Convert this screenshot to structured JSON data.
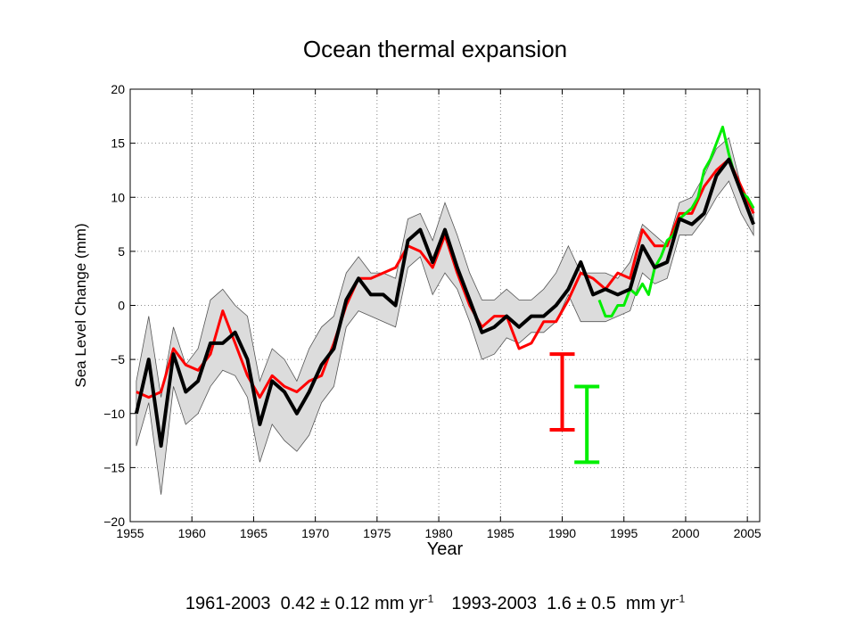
{
  "chart_data": {
    "type": "line",
    "title": "Ocean thermal expansion",
    "xlabel": "Year",
    "ylabel": "Sea Level Change (mm)",
    "xlim": [
      1955,
      2006
    ],
    "ylim": [
      -20,
      20
    ],
    "xticks": [
      1955,
      1960,
      1965,
      1970,
      1975,
      1980,
      1985,
      1990,
      1995,
      2000,
      2005
    ],
    "yticks": [
      -20,
      -15,
      -10,
      -5,
      0,
      5,
      10,
      15,
      20
    ],
    "grid": true,
    "band": {
      "x": [
        1955.5,
        1956.5,
        1957.5,
        1958.5,
        1959.5,
        1960.5,
        1961.5,
        1962.5,
        1963.5,
        1964.5,
        1965.5,
        1966.5,
        1967.5,
        1968.5,
        1969.5,
        1970.5,
        1971.5,
        1972.5,
        1973.5,
        1974.5,
        1975.5,
        1976.5,
        1977.5,
        1978.5,
        1979.5,
        1980.5,
        1981.5,
        1982.5,
        1983.5,
        1984.5,
        1985.5,
        1986.5,
        1987.5,
        1988.5,
        1989.5,
        1990.5,
        1991.5,
        1992.5,
        1993.5,
        1994.5,
        1995.5,
        1996.5,
        1997.5,
        1998.5,
        1999.5,
        2000.5,
        2001.5,
        2002.5,
        2003.5,
        2004.5,
        2005.5
      ],
      "upper": [
        -7,
        -1,
        -8.5,
        -2,
        -5.5,
        -4,
        0.5,
        1.5,
        0,
        -1,
        -7,
        -4,
        -5,
        -7,
        -4,
        -2,
        -1,
        3,
        4.5,
        3,
        3,
        2.5,
        8,
        8.5,
        6,
        9.5,
        6.5,
        3,
        0.5,
        0.5,
        1.5,
        0.5,
        0.5,
        1.5,
        3,
        5.5,
        3,
        3,
        3,
        2.5,
        4,
        7.5,
        6.5,
        5.5,
        9.5,
        10,
        12,
        14.5,
        15.5,
        11,
        9
      ],
      "lower": [
        -13,
        -9,
        -17.5,
        -7.5,
        -11,
        -10,
        -7.5,
        -6,
        -6.5,
        -8.5,
        -14.5,
        -11,
        -12.5,
        -13.5,
        -12,
        -9,
        -7.5,
        -2,
        -0.5,
        -1,
        -1.5,
        -2,
        3.5,
        4.5,
        1,
        3,
        1.5,
        -1.5,
        -5,
        -4.5,
        -3,
        -3.5,
        -2.5,
        -2.5,
        -1.5,
        1,
        -1.5,
        -1.5,
        -1.5,
        -1,
        -0.5,
        3,
        2,
        2.5,
        6.5,
        6.5,
        8,
        10,
        11.5,
        8.5,
        6.5
      ]
    },
    "series": [
      {
        "color": "#000000",
        "x": [
          1955.5,
          1956.5,
          1957.5,
          1958.5,
          1959.5,
          1960.5,
          1961.5,
          1962.5,
          1963.5,
          1964.5,
          1965.5,
          1966.5,
          1967.5,
          1968.5,
          1969.5,
          1970.5,
          1971.5,
          1972.5,
          1973.5,
          1974.5,
          1975.5,
          1976.5,
          1977.5,
          1978.5,
          1979.5,
          1980.5,
          1981.5,
          1982.5,
          1983.5,
          1984.5,
          1985.5,
          1986.5,
          1987.5,
          1988.5,
          1989.5,
          1990.5,
          1991.5,
          1992.5,
          1993.5,
          1994.5,
          1995.5,
          1996.5,
          1997.5,
          1998.5,
          1999.5,
          2000.5,
          2001.5,
          2002.5,
          2003.5,
          2004.5,
          2005.5
        ],
        "y": [
          -10,
          -5,
          -13,
          -4.5,
          -8,
          -7,
          -3.5,
          -3.5,
          -2.5,
          -5,
          -11,
          -7,
          -8,
          -10,
          -8,
          -5.5,
          -4,
          0.5,
          2.5,
          1,
          1,
          0,
          6,
          7,
          4,
          7,
          3.5,
          0.5,
          -2.5,
          -2,
          -1,
          -2,
          -1,
          -1,
          0,
          1.5,
          4,
          1,
          1.5,
          1,
          1.5,
          5.5,
          3.5,
          4,
          8,
          7.5,
          8.5,
          12,
          13.5,
          10.5,
          7.5
        ]
      },
      {
        "color": "#ff0000",
        "x": [
          1955.5,
          1956.5,
          1957.5,
          1958.5,
          1959.5,
          1960.5,
          1961.5,
          1962.5,
          1963.5,
          1964.5,
          1965.5,
          1966.5,
          1967.5,
          1968.5,
          1969.5,
          1970.5,
          1971.5,
          1972.5,
          1973.5,
          1974.5,
          1975.5,
          1976.5,
          1977.5,
          1978.5,
          1979.5,
          1980.5,
          1981.5,
          1982.5,
          1983.5,
          1984.5,
          1985.5,
          1986.5,
          1987.5,
          1988.5,
          1989.5,
          1990.5,
          1991.5,
          1992.5,
          1993.5,
          1994.5,
          1995.5,
          1996.5,
          1997.5,
          1998.5,
          1999.5,
          2000.5,
          2001.5,
          2002.5,
          2003.5,
          2004.5,
          2005.5
        ],
        "y": [
          -8,
          -8.5,
          -8,
          -4,
          -5.5,
          -6,
          -4.5,
          -0.5,
          -3.5,
          -6.5,
          -8.5,
          -6.5,
          -7.5,
          -8,
          -7,
          -6.5,
          -3.5,
          0,
          2.5,
          2.5,
          3,
          3.5,
          5.5,
          5,
          3.5,
          6.5,
          3,
          0,
          -2,
          -1,
          -1,
          -4,
          -3.5,
          -1.5,
          -1.5,
          0.5,
          3,
          2.5,
          1.5,
          3,
          2.5,
          7,
          5.5,
          5.5,
          8.5,
          8.5,
          11,
          12.5,
          13.5,
          11,
          8.5
        ]
      },
      {
        "color": "#00ee00",
        "x": [
          1993.0,
          1993.5,
          1994.0,
          1994.5,
          1995.0,
          1995.5,
          1996.0,
          1996.5,
          1997.0,
          1997.5,
          1998.0,
          1998.5,
          1999.0,
          1999.5,
          2000.0,
          2000.5,
          2001.0,
          2001.5,
          2002.0,
          2002.5,
          2003.0,
          2003.5,
          2004.0,
          2004.5,
          2005.0,
          2005.5
        ],
        "y": [
          0.5,
          -1,
          -1,
          0,
          0,
          1.5,
          1,
          2,
          1,
          3.5,
          4.5,
          6,
          6.5,
          8,
          8.5,
          9,
          10,
          12.5,
          13.5,
          15,
          16.5,
          14,
          12,
          10.5,
          10,
          9
        ]
      }
    ],
    "error_bars": [
      {
        "color": "#ff0000",
        "x": 1990,
        "low": -11.5,
        "high": -4.5
      },
      {
        "color": "#00ee00",
        "x": 1992,
        "low": -14.5,
        "high": -7.5
      }
    ]
  },
  "caption": {
    "red_period": "1961-2003",
    "red_rate": "0.42 ± 0.12 mm yr",
    "green_period": "1993-2003",
    "green_rate": "1.6 ± 0.5  mm yr",
    "unit_exp": "-1"
  }
}
